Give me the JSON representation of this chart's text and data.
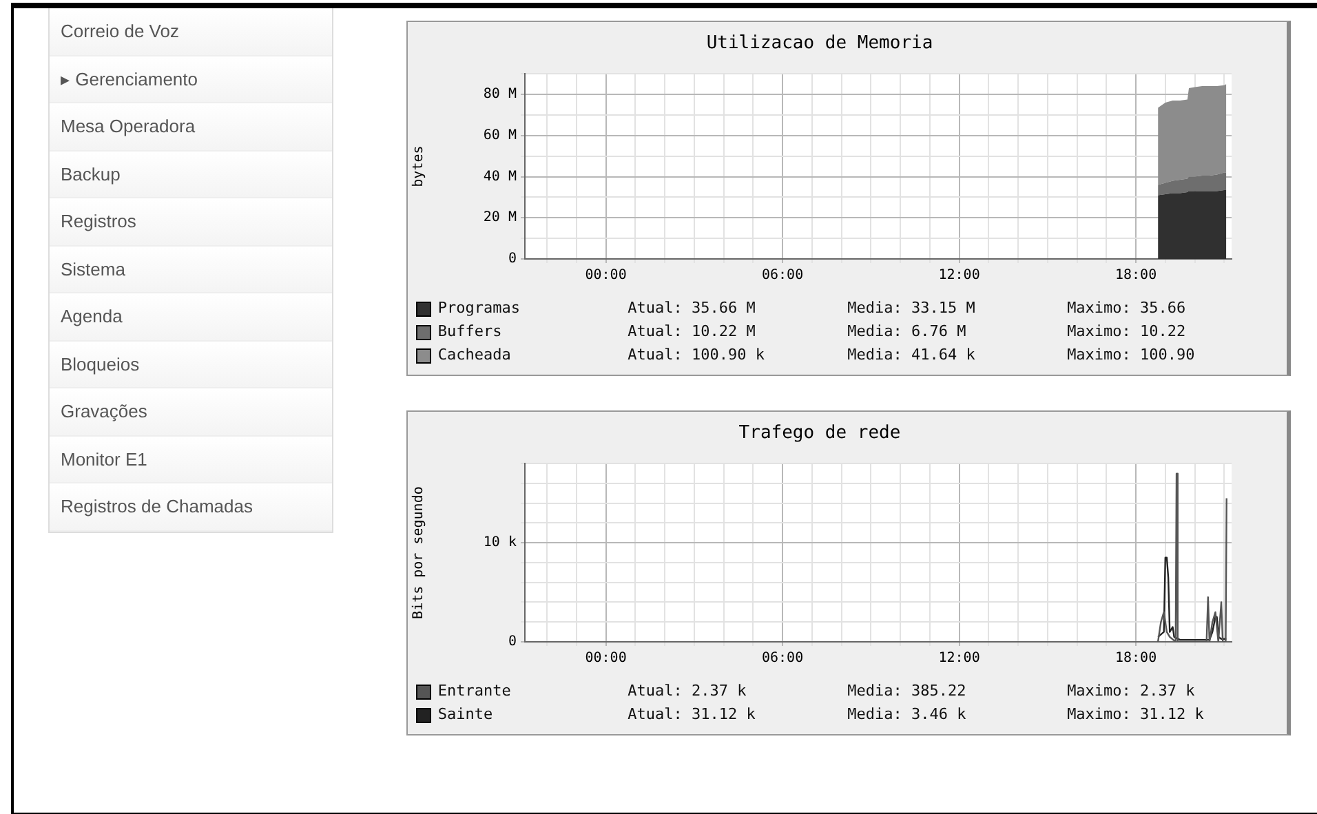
{
  "chart_data": [
    {
      "type": "other",
      "annotations": [
        "Correio de Voz",
        "▸ Gerenciamento",
        "Mesa Operadora",
        "Backup",
        "Registros",
        "Sistema",
        "Agenda",
        "Bloqueios",
        "Gravações",
        "Monitor E1",
        "Registros de Chamadas"
      ]
    },
    {
      "type": "area",
      "title": "Utilizacao de Memoria",
      "ylabel": "bytes",
      "stacked": true,
      "grid": true,
      "legend": "bottom",
      "xlim": [
        -2.75,
        21.25
      ],
      "xticks": [
        {
          "value": -2,
          "label": null
        },
        {
          "value": -1,
          "label": null
        },
        {
          "value": 0,
          "label": "00:00"
        },
        {
          "value": 1,
          "label": null
        },
        {
          "value": 2,
          "label": null
        },
        {
          "value": 3,
          "label": null
        },
        {
          "value": 4,
          "label": null
        },
        {
          "value": 5,
          "label": null
        },
        {
          "value": 6,
          "label": "06:00"
        },
        {
          "value": 7,
          "label": null
        },
        {
          "value": 8,
          "label": null
        },
        {
          "value": 9,
          "label": null
        },
        {
          "value": 10,
          "label": null
        },
        {
          "value": 11,
          "label": null
        },
        {
          "value": 12,
          "label": "12:00"
        },
        {
          "value": 13,
          "label": null
        },
        {
          "value": 14,
          "label": null
        },
        {
          "value": 15,
          "label": null
        },
        {
          "value": 16,
          "label": null
        },
        {
          "value": 17,
          "label": null
        },
        {
          "value": 18,
          "label": "18:00"
        },
        {
          "value": 19,
          "label": null
        },
        {
          "value": 20,
          "label": null
        },
        {
          "value": 21,
          "label": null
        }
      ],
      "ylim": [
        0,
        90
      ],
      "yticks": [
        {
          "value": 0,
          "label": "0"
        },
        {
          "value": 10,
          "label": null
        },
        {
          "value": 20,
          "label": "20 M"
        },
        {
          "value": 30,
          "label": null
        },
        {
          "value": 40,
          "label": "40 M"
        },
        {
          "value": 50,
          "label": null
        },
        {
          "value": 60,
          "label": "60 M"
        },
        {
          "value": 70,
          "label": null
        },
        {
          "value": 80,
          "label": "80 M"
        },
        {
          "value": 90,
          "label": null
        }
      ],
      "x": [
        18.75,
        19.0,
        19.25,
        19.5,
        19.75,
        19.8,
        20.0,
        20.25,
        20.5,
        20.75,
        21.0,
        21.07
      ],
      "series": [
        {
          "name": "Programas",
          "color": "#303030",
          "values": [
            31,
            31.5,
            32,
            32,
            32.5,
            33,
            33,
            33,
            33,
            33,
            33.5,
            33.5
          ]
        },
        {
          "name": "Buffers",
          "color": "#6e6e6e",
          "values": [
            5,
            5.5,
            6,
            6.5,
            6.5,
            7,
            7,
            7.5,
            7.5,
            8,
            8.5,
            8.5
          ]
        },
        {
          "name": "Cacheada",
          "color": "#8c8c8c",
          "values": [
            37.5,
            39,
            39,
            38.5,
            38.5,
            43,
            43.5,
            43.5,
            43.5,
            43,
            42.5,
            43
          ]
        }
      ],
      "annotations": [
        "Atual: 35.66 M",
        "Media: 33.15 M",
        "Maximo: 35.66",
        "Atual: 10.22 M",
        "Media: 6.76 M",
        "Maximo: 10.22",
        "Atual: 100.90 k",
        "Media: 41.64 k",
        "Maximo: 100.90"
      ]
    },
    {
      "type": "line",
      "title": "Trafego de rede",
      "ylabel": "Bits por segundo",
      "grid": true,
      "legend": "bottom",
      "xlim": [
        -2.75,
        21.25
      ],
      "xticks": [
        {
          "value": -2,
          "label": null
        },
        {
          "value": -1,
          "label": null
        },
        {
          "value": 0,
          "label": "00:00"
        },
        {
          "value": 1,
          "label": null
        },
        {
          "value": 2,
          "label": null
        },
        {
          "value": 3,
          "label": null
        },
        {
          "value": 4,
          "label": null
        },
        {
          "value": 5,
          "label": null
        },
        {
          "value": 6,
          "label": "06:00"
        },
        {
          "value": 7,
          "label": null
        },
        {
          "value": 8,
          "label": null
        },
        {
          "value": 9,
          "label": null
        },
        {
          "value": 10,
          "label": null
        },
        {
          "value": 11,
          "label": null
        },
        {
          "value": 12,
          "label": "12:00"
        },
        {
          "value": 13,
          "label": null
        },
        {
          "value": 14,
          "label": null
        },
        {
          "value": 15,
          "label": null
        },
        {
          "value": 16,
          "label": null
        },
        {
          "value": 17,
          "label": null
        },
        {
          "value": 18,
          "label": "18:00"
        },
        {
          "value": 19,
          "label": null
        },
        {
          "value": 20,
          "label": null
        },
        {
          "value": 21,
          "label": null
        }
      ],
      "ylim": [
        0,
        18
      ],
      "yticks": [
        {
          "value": 0,
          "label": "0"
        },
        {
          "value": 2,
          "label": null
        },
        {
          "value": 4,
          "label": null
        },
        {
          "value": 6,
          "label": null
        },
        {
          "value": 8,
          "label": null
        },
        {
          "value": 10,
          "label": "10 k"
        },
        {
          "value": 12,
          "label": null
        },
        {
          "value": 14,
          "label": null
        },
        {
          "value": 16,
          "label": null
        },
        {
          "value": 18,
          "label": null
        }
      ],
      "series": [
        {
          "name": "Entrante",
          "color": "#555555",
          "x": [
            18.75,
            18.85,
            18.95,
            19.05,
            19.15,
            19.35,
            19.38,
            19.42,
            19.6,
            20.0,
            20.4,
            20.45,
            20.5,
            20.6,
            20.7,
            20.8,
            20.9,
            20.95,
            21.05,
            21.08
          ],
          "values": [
            0,
            2,
            3,
            1,
            0.5,
            0,
            17,
            0,
            0,
            0,
            0,
            4.5,
            0,
            2,
            3,
            0,
            4,
            0,
            0,
            14.5
          ]
        },
        {
          "name": "Sainte",
          "color": "#222222",
          "x": [
            18.75,
            18.95,
            19.0,
            19.05,
            19.1,
            19.15,
            19.25,
            19.3,
            19.5,
            20.0,
            20.5,
            20.6,
            20.7,
            20.75,
            20.8,
            20.9,
            21.07
          ],
          "values": [
            0.5,
            1,
            8.5,
            8.5,
            6.5,
            1,
            1.5,
            0.5,
            0.2,
            0.2,
            0.2,
            1,
            2.5,
            2.5,
            0.5,
            0.3,
            0.3
          ]
        }
      ],
      "annotations": [
        "Atual: 2.37 k",
        "Media: 385.22",
        "Maximo: 2.37 k",
        "Atual: 31.12 k",
        "Media: 3.46 k",
        "Maximo: 31.12 k"
      ]
    }
  ]
}
